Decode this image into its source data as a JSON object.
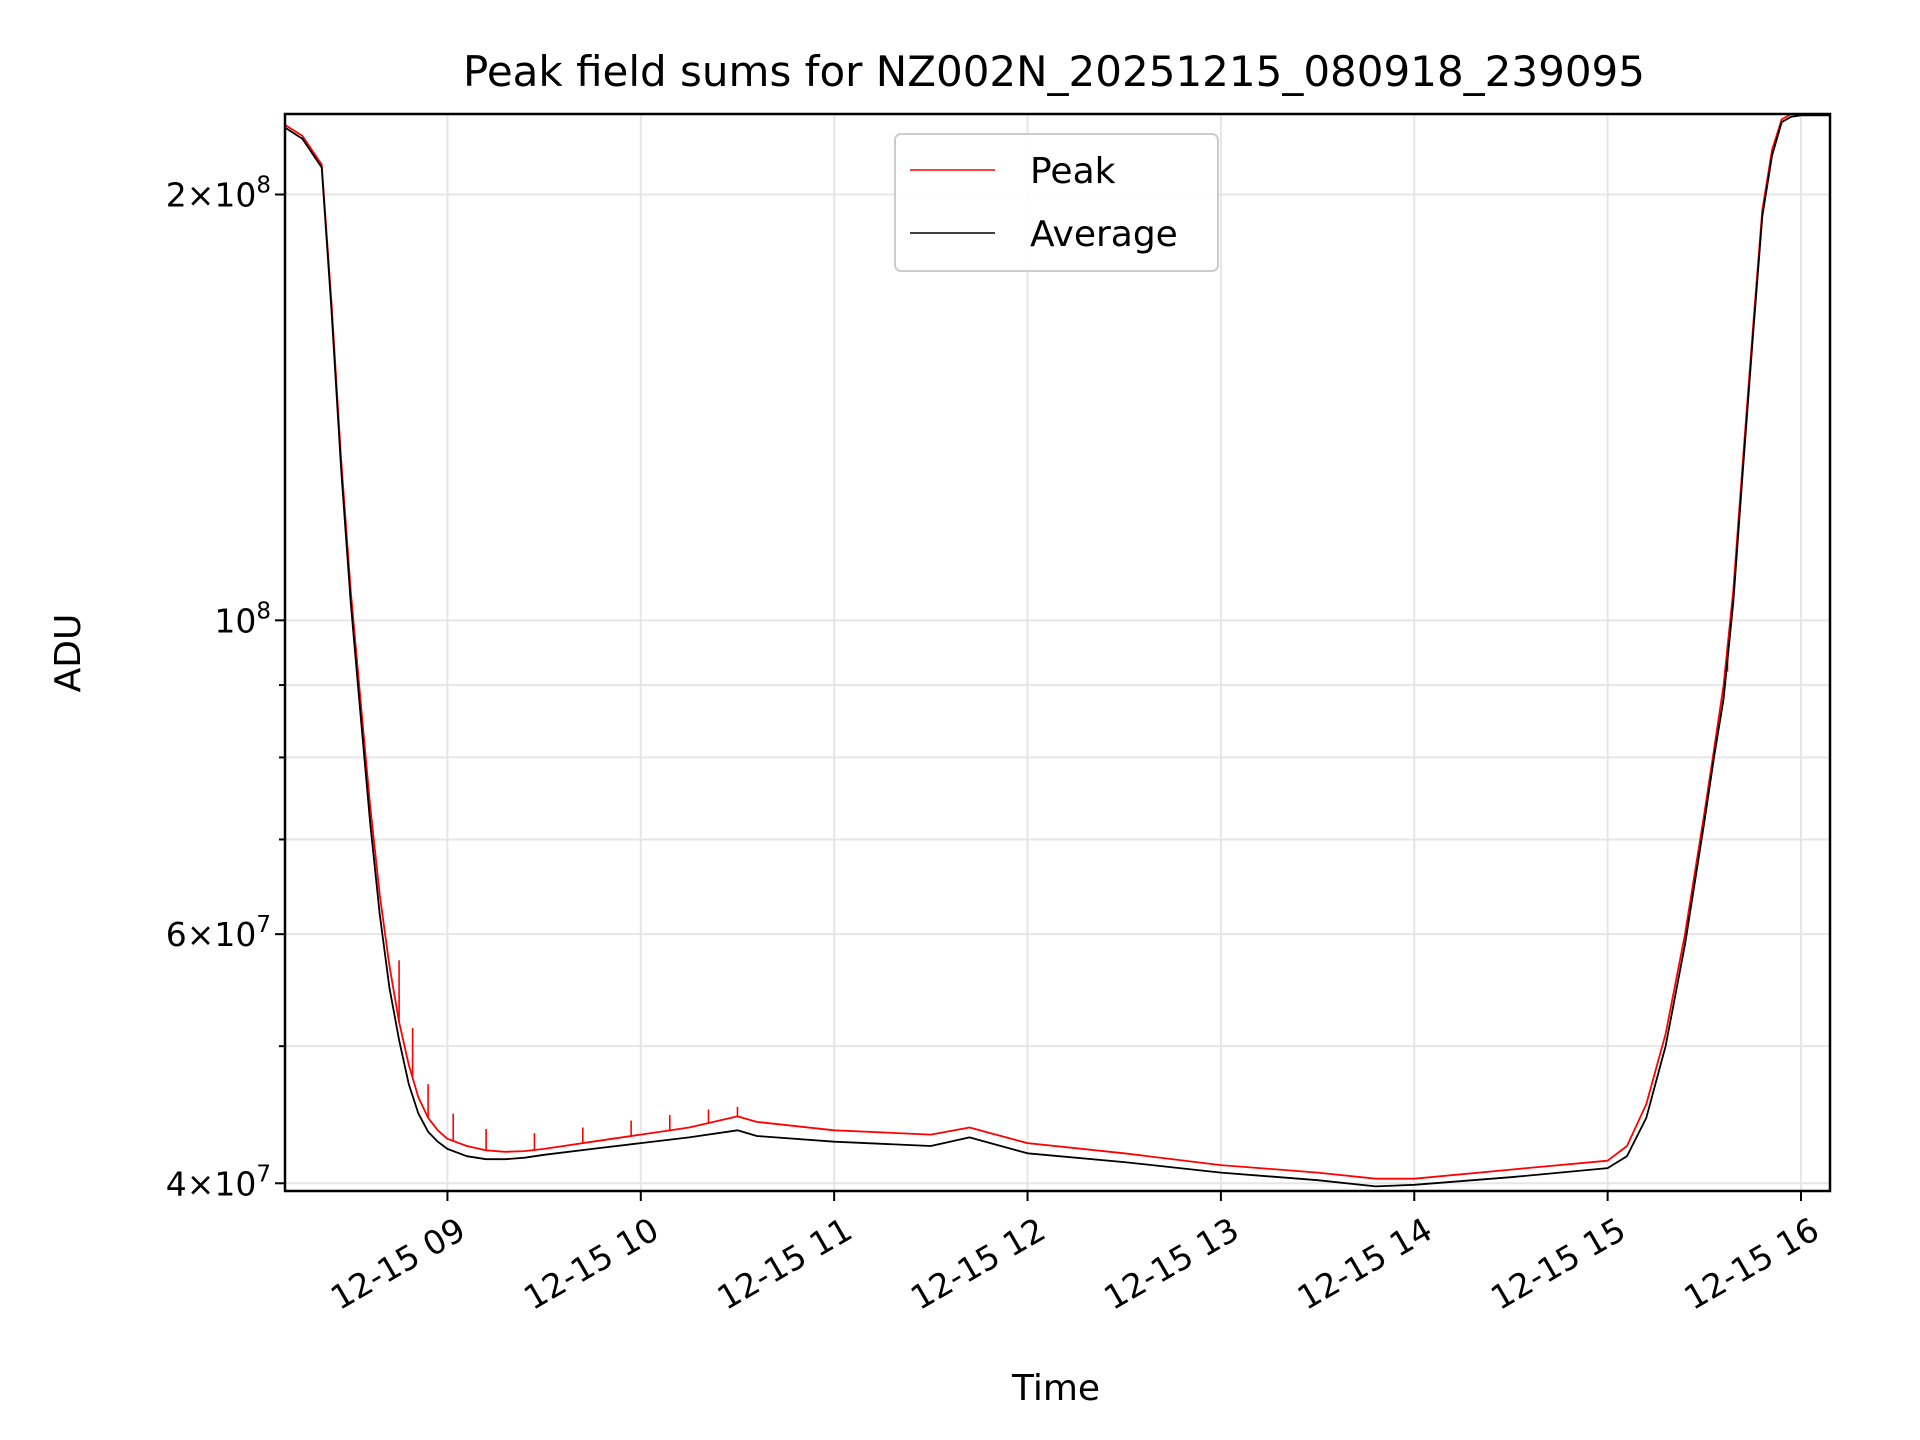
{
  "chart_data": {
    "type": "line",
    "title": "Peak field sums for NZ002N_20251215_080918_239095",
    "xlabel": "Time",
    "ylabel": "ADU",
    "yscale": "log",
    "ylim": [
      39500000,
      228000000
    ],
    "x_unit": "hours since 2025-12-15 00:00",
    "xlim": [
      8.16,
      16.15
    ],
    "grid": true,
    "legend_position": "top-center",
    "x_ticks": [
      {
        "value": 9,
        "label": "12-15 09"
      },
      {
        "value": 10,
        "label": "12-15 10"
      },
      {
        "value": 11,
        "label": "12-15 11"
      },
      {
        "value": 12,
        "label": "12-15 12"
      },
      {
        "value": 13,
        "label": "12-15 13"
      },
      {
        "value": 14,
        "label": "12-15 14"
      },
      {
        "value": 15,
        "label": "12-15 15"
      },
      {
        "value": 16,
        "label": "12-15 16"
      }
    ],
    "y_ticks": [
      {
        "value": 40000000,
        "mant": "4",
        "exp": "7"
      },
      {
        "value": 60000000,
        "mant": "6",
        "exp": "7"
      },
      {
        "value": 100000000,
        "mant": "",
        "exp": "8"
      },
      {
        "value": 200000000,
        "mant": "2",
        "exp": "8"
      }
    ],
    "y_minor_ticks": [
      50000000,
      70000000,
      80000000,
      90000000
    ],
    "series": [
      {
        "name": "Peak",
        "color": "#ff0000",
        "x": [
          8.16,
          8.25,
          8.35,
          8.4,
          8.45,
          8.5,
          8.55,
          8.6,
          8.65,
          8.7,
          8.75,
          8.8,
          8.85,
          8.9,
          8.95,
          9.0,
          9.1,
          9.2,
          9.3,
          9.4,
          9.5,
          9.75,
          10.0,
          10.25,
          10.5,
          10.6,
          11.0,
          11.5,
          11.7,
          12.0,
          12.5,
          13.0,
          13.5,
          13.8,
          14.0,
          14.5,
          15.0,
          15.1,
          15.2,
          15.3,
          15.4,
          15.5,
          15.55,
          15.6,
          15.65,
          15.7,
          15.75,
          15.8,
          15.85,
          15.9,
          15.95,
          16.0,
          16.15
        ],
        "values": [
          224000000,
          220000000,
          210000000,
          168000000,
          130000000,
          105000000,
          88000000,
          74000000,
          64000000,
          57000000,
          52000000,
          48500000,
          46000000,
          44500000,
          43600000,
          43000000,
          42500000,
          42200000,
          42100000,
          42150000,
          42300000,
          42800000,
          43300000,
          43800000,
          44600000,
          44200000,
          43600000,
          43300000,
          43800000,
          42700000,
          42000000,
          41200000,
          40700000,
          40300000,
          40300000,
          40900000,
          41500000,
          42500000,
          45500000,
          51000000,
          60000000,
          73000000,
          81000000,
          90000000,
          105000000,
          130000000,
          160000000,
          195000000,
          215000000,
          226000000,
          228000000,
          228000000,
          228000000
        ],
        "spikes": [
          {
            "x": 8.75,
            "value": 57500000
          },
          {
            "x": 8.82,
            "value": 51500000
          },
          {
            "x": 8.9,
            "value": 47000000
          },
          {
            "x": 9.03,
            "value": 44800000
          },
          {
            "x": 9.2,
            "value": 43700000
          },
          {
            "x": 9.45,
            "value": 43400000
          },
          {
            "x": 9.7,
            "value": 43800000
          },
          {
            "x": 9.95,
            "value": 44300000
          },
          {
            "x": 10.15,
            "value": 44700000
          },
          {
            "x": 10.35,
            "value": 45100000
          },
          {
            "x": 10.5,
            "value": 45300000
          },
          {
            "x": 15.62,
            "value": 92000000
          }
        ]
      },
      {
        "name": "Average",
        "color": "#000000",
        "x": [
          8.16,
          8.25,
          8.35,
          8.4,
          8.45,
          8.5,
          8.55,
          8.6,
          8.65,
          8.7,
          8.75,
          8.8,
          8.85,
          8.9,
          8.95,
          9.0,
          9.1,
          9.2,
          9.3,
          9.4,
          9.5,
          9.75,
          10.0,
          10.25,
          10.5,
          10.6,
          11.0,
          11.5,
          11.7,
          12.0,
          12.5,
          13.0,
          13.5,
          13.8,
          14.0,
          14.5,
          15.0,
          15.1,
          15.2,
          15.3,
          15.4,
          15.5,
          15.55,
          15.6,
          15.65,
          15.7,
          15.75,
          15.8,
          15.85,
          15.9,
          15.95,
          16.0,
          16.15
        ],
        "values": [
          223000000,
          219000000,
          209000000,
          166000000,
          128000000,
          103000000,
          86000000,
          72000000,
          62000000,
          55000000,
          50500000,
          47000000,
          44800000,
          43500000,
          42800000,
          42300000,
          41800000,
          41600000,
          41600000,
          41700000,
          41900000,
          42300000,
          42700000,
          43100000,
          43600000,
          43200000,
          42800000,
          42500000,
          43100000,
          42000000,
          41400000,
          40700000,
          40200000,
          39800000,
          39900000,
          40400000,
          41000000,
          41800000,
          44500000,
          50000000,
          59000000,
          72000000,
          80000000,
          88000000,
          103000000,
          128000000,
          158000000,
          193000000,
          213000000,
          225000000,
          227000000,
          227500000,
          227500000
        ]
      }
    ]
  }
}
